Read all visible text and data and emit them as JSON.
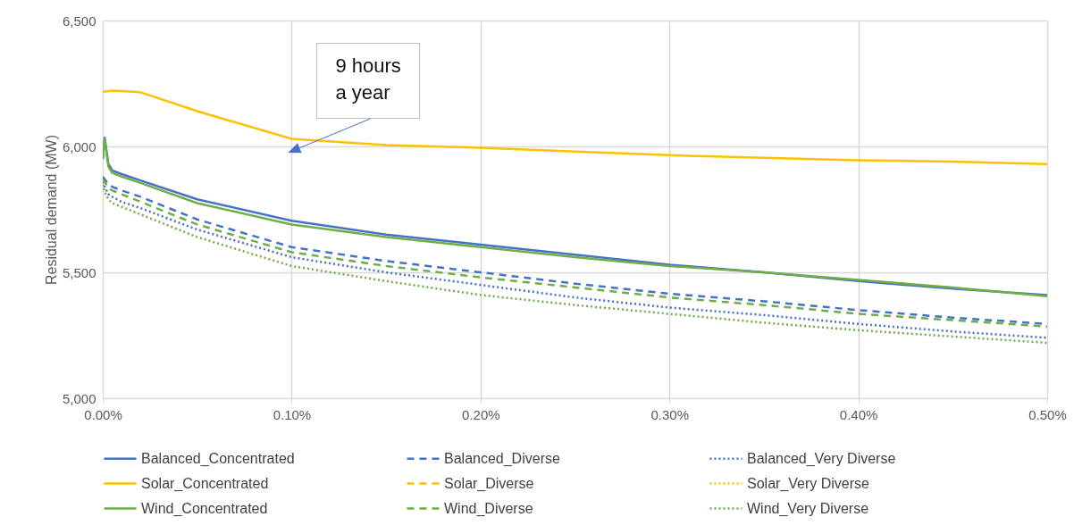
{
  "chart_data": {
    "type": "line",
    "ylabel": "Residual demand (MW)",
    "x": [
      0,
      0.001,
      0.003,
      0.005,
      0.01,
      0.02,
      0.05,
      0.1,
      0.15,
      0.2,
      0.25,
      0.3,
      0.35,
      0.4,
      0.45,
      0.5
    ],
    "xlim": [
      0,
      0.5
    ],
    "xticks": [
      {
        "value": 0,
        "label": "0.00%"
      },
      {
        "value": 0.1,
        "label": "0.10%"
      },
      {
        "value": 0.2,
        "label": "0.20%"
      },
      {
        "value": 0.3,
        "label": "0.30%"
      },
      {
        "value": 0.4,
        "label": "0.40%"
      },
      {
        "value": 0.5,
        "label": "0.50%"
      }
    ],
    "ylim": [
      5000,
      6500
    ],
    "yticks": [
      {
        "value": 5000,
        "label": "5,000"
      },
      {
        "value": 5500,
        "label": "5,500"
      },
      {
        "value": 6000,
        "label": "6,000"
      },
      {
        "value": 6500,
        "label": "6,500"
      }
    ],
    "grid": true,
    "legend": "bottom",
    "series": [
      {
        "name": "Balanced_Concentrated",
        "color": "#4472c4",
        "line_style": "solid",
        "values": [
          5950,
          6035,
          5930,
          5905,
          5890,
          5865,
          5790,
          5705,
          5650,
          5610,
          5570,
          5530,
          5500,
          5465,
          5435,
          5410
        ]
      },
      {
        "name": "Balanced_Diverse",
        "color": "#4472c4",
        "line_style": "dashed",
        "values": [
          5880,
          5870,
          5850,
          5840,
          5825,
          5800,
          5710,
          5600,
          5545,
          5500,
          5455,
          5415,
          5385,
          5350,
          5320,
          5295
        ]
      },
      {
        "name": "Balanced_Very Diverse",
        "color": "#4472c4",
        "line_style": "dotted",
        "values": [
          5860,
          5840,
          5810,
          5800,
          5780,
          5755,
          5670,
          5560,
          5500,
          5450,
          5400,
          5360,
          5330,
          5295,
          5265,
          5240
        ]
      },
      {
        "name": "Solar_Concentrated",
        "color": "#ffc000",
        "line_style": "solid",
        "values": [
          6215,
          6218,
          6220,
          6222,
          6220,
          6215,
          6140,
          6030,
          6005,
          5995,
          5980,
          5965,
          5955,
          5945,
          5940,
          5930
        ]
      },
      {
        "name": "Solar_Diverse",
        "color": "#ffc000",
        "line_style": "dashed",
        "values": [
          null,
          null,
          null,
          null,
          null,
          null,
          null,
          null,
          null,
          null,
          null,
          null,
          null,
          null,
          null,
          null
        ]
      },
      {
        "name": "Solar_Very Diverse",
        "color": "#ffc000",
        "line_style": "dotted",
        "values": [
          null,
          null,
          null,
          null,
          null,
          null,
          null,
          null,
          null,
          null,
          null,
          null,
          null,
          null,
          null,
          null
        ]
      },
      {
        "name": "Wind_Concentrated",
        "color": "#70ad47",
        "line_style": "solid",
        "values": [
          5950,
          6030,
          5920,
          5895,
          5880,
          5855,
          5775,
          5690,
          5640,
          5600,
          5560,
          5525,
          5500,
          5470,
          5440,
          5405
        ]
      },
      {
        "name": "Wind_Diverse",
        "color": "#70ad47",
        "line_style": "dashed",
        "values": [
          5870,
          5860,
          5835,
          5825,
          5810,
          5780,
          5690,
          5580,
          5525,
          5480,
          5440,
          5400,
          5370,
          5335,
          5310,
          5285
        ]
      },
      {
        "name": "Wind_Very Diverse",
        "color": "#70ad47",
        "line_style": "dotted",
        "values": [
          5850,
          5820,
          5790,
          5775,
          5760,
          5730,
          5640,
          5525,
          5465,
          5410,
          5370,
          5335,
          5300,
          5270,
          5245,
          5220
        ]
      }
    ],
    "annotations": [
      "9 hours a year"
    ]
  }
}
